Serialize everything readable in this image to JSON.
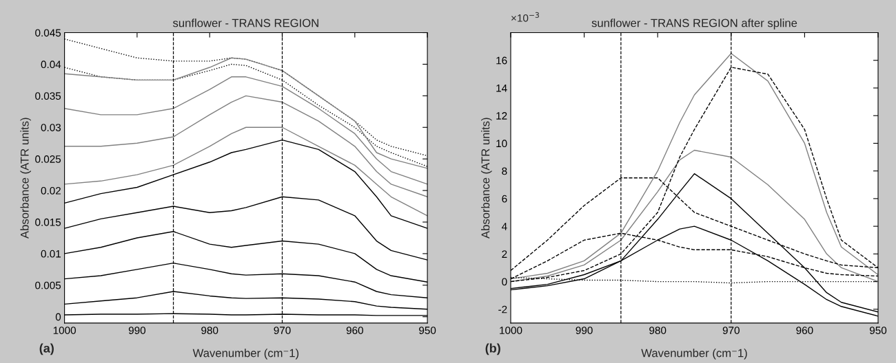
{
  "chart_data": [
    {
      "type": "line",
      "title": "sunflower - TRANS REGION",
      "xlabel": "Wavenumber (cm⁻1)",
      "ylabel": "Absorbance (ATR units)",
      "x": [
        1000,
        995,
        990,
        985,
        980,
        977,
        975,
        970,
        965,
        960,
        957,
        955,
        950
      ],
      "xlim": [
        1000,
        950
      ],
      "xticks": [
        1000,
        990,
        980,
        970,
        960,
        950
      ],
      "ylim": [
        -0.001,
        0.045
      ],
      "yticks": [
        0,
        0.005,
        0.01,
        0.015,
        0.02,
        0.025,
        0.03,
        0.035,
        0.04,
        0.045
      ],
      "grid": false,
      "series": [
        {
          "color": "#000000",
          "line_style": "dotted",
          "values": [
            0.044,
            0.0425,
            0.041,
            0.0405,
            0.0405,
            0.041,
            0.0408,
            0.039,
            0.035,
            0.031,
            0.028,
            0.027,
            0.0255
          ]
        },
        {
          "color": "#000000",
          "line_style": "dotted",
          "values": [
            0.0395,
            0.038,
            0.0375,
            0.0375,
            0.039,
            0.04,
            0.0398,
            0.0375,
            0.0335,
            0.03,
            0.027,
            0.026,
            0.0238
          ]
        },
        {
          "color": "#808080",
          "line_style": "solid",
          "values": [
            0.0385,
            0.038,
            0.0375,
            0.0375,
            0.0395,
            0.041,
            0.0408,
            0.039,
            0.035,
            0.031,
            0.026,
            0.025,
            0.0235
          ]
        },
        {
          "color": "#808080",
          "line_style": "solid",
          "values": [
            0.033,
            0.032,
            0.032,
            0.033,
            0.036,
            0.038,
            0.038,
            0.0365,
            0.033,
            0.029,
            0.025,
            0.023,
            0.021
          ]
        },
        {
          "color": "#808080",
          "line_style": "solid",
          "values": [
            0.027,
            0.027,
            0.0275,
            0.0285,
            0.032,
            0.034,
            0.035,
            0.034,
            0.031,
            0.027,
            0.023,
            0.021,
            0.019
          ]
        },
        {
          "color": "#808080",
          "line_style": "solid",
          "values": [
            0.021,
            0.0215,
            0.0225,
            0.024,
            0.027,
            0.029,
            0.03,
            0.03,
            0.027,
            0.024,
            0.021,
            0.019,
            0.016
          ]
        },
        {
          "color": "#000000",
          "line_style": "solid",
          "values": [
            0.018,
            0.0195,
            0.0205,
            0.0225,
            0.0245,
            0.026,
            0.0265,
            0.028,
            0.0265,
            0.023,
            0.019,
            0.016,
            0.014
          ]
        },
        {
          "color": "#000000",
          "line_style": "solid",
          "values": [
            0.014,
            0.0155,
            0.0165,
            0.0175,
            0.0165,
            0.0168,
            0.0173,
            0.019,
            0.0185,
            0.016,
            0.012,
            0.0105,
            0.009
          ]
        },
        {
          "color": "#000000",
          "line_style": "solid",
          "values": [
            0.01,
            0.011,
            0.0125,
            0.0135,
            0.0115,
            0.011,
            0.0113,
            0.012,
            0.0115,
            0.01,
            0.0075,
            0.0065,
            0.0055
          ]
        },
        {
          "color": "#000000",
          "line_style": "solid",
          "values": [
            0.006,
            0.0065,
            0.0075,
            0.0085,
            0.0075,
            0.0068,
            0.0066,
            0.0068,
            0.0065,
            0.0055,
            0.004,
            0.0035,
            0.003
          ]
        },
        {
          "color": "#000000",
          "line_style": "solid",
          "values": [
            0.002,
            0.0025,
            0.003,
            0.004,
            0.0033,
            0.003,
            0.0029,
            0.003,
            0.0028,
            0.0024,
            0.0017,
            0.0015,
            0.0012
          ]
        },
        {
          "color": "#000000",
          "line_style": "solid",
          "values": [
            0.0003,
            0.0004,
            0.0004,
            0.0005,
            0.0004,
            0.0003,
            0.0003,
            0.0004,
            0.0003,
            0.0003,
            0.0002,
            0.0002,
            0.0002
          ]
        }
      ],
      "ref_lines": [
        {
          "axis": "x",
          "value": 985,
          "color": "#000000",
          "line_style": "dashed"
        },
        {
          "axis": "x",
          "value": 970,
          "color": "#000000",
          "line_style": "dashed"
        }
      ],
      "annotations": [
        "(a)"
      ]
    },
    {
      "type": "line",
      "title": "sunflower - TRANS REGION after spline",
      "xlabel": "Wavenumber (cm⁻1)",
      "ylabel": "Absorbance (ATR units)",
      "x": [
        1000,
        995,
        990,
        985,
        980,
        977,
        975,
        970,
        965,
        960,
        957,
        955,
        950
      ],
      "xlim": [
        1000,
        950
      ],
      "xticks": [
        1000,
        990,
        980,
        970,
        960,
        950
      ],
      "ylim": [
        -3,
        18
      ],
      "yticks": [
        -2,
        0,
        2,
        4,
        6,
        8,
        10,
        12,
        14,
        16
      ],
      "grid": false,
      "series": [
        {
          "color": "#808080",
          "line_style": "solid",
          "values": [
            0.2,
            0.6,
            1.5,
            3.5,
            8,
            11.5,
            13.5,
            16.5,
            14.5,
            10,
            5,
            2.5,
            0.5
          ]
        },
        {
          "color": "#808080",
          "line_style": "solid",
          "values": [
            0,
            0.4,
            1.2,
            3,
            6.5,
            8.8,
            9.5,
            9,
            7,
            4.5,
            2,
            1,
            0
          ]
        },
        {
          "color": "#000000",
          "line_style": "solid",
          "values": [
            -0.5,
            -0.2,
            0.5,
            1.5,
            4.5,
            6.5,
            7.8,
            6,
            3.5,
            1,
            -0.8,
            -1.5,
            -2.2
          ]
        },
        {
          "color": "#000000",
          "line_style": "solid",
          "values": [
            -0.6,
            -0.3,
            0.2,
            1.5,
            3,
            3.8,
            4,
            3,
            1.5,
            -0.2,
            -1.3,
            -1.8,
            -2.5
          ]
        },
        {
          "color": "#000000",
          "line_style": "dashed",
          "values": [
            0.8,
            3,
            5.5,
            7.5,
            7.5,
            6,
            5,
            4,
            3,
            2,
            1.5,
            1.2,
            1
          ]
        },
        {
          "color": "#000000",
          "line_style": "dashed",
          "values": [
            0.2,
            1.5,
            3,
            3.5,
            3,
            2.5,
            2.3,
            2.3,
            1.8,
            1,
            0.6,
            0.5,
            0.4
          ]
        },
        {
          "color": "#000000",
          "line_style": "dashed",
          "values": [
            0,
            0.3,
            0.8,
            2,
            5,
            9,
            11,
            15.5,
            15,
            11,
            6,
            3,
            1
          ]
        },
        {
          "color": "#000000",
          "line_style": "dotted",
          "values": [
            0.3,
            0.2,
            0.1,
            0.1,
            0,
            0,
            0,
            -0.1,
            0,
            0,
            0,
            0,
            0
          ]
        }
      ],
      "ref_lines": [
        {
          "axis": "x",
          "value": 985,
          "color": "#000000",
          "line_style": "dashed"
        },
        {
          "axis": "x",
          "value": 970,
          "color": "#000000",
          "line_style": "dashed"
        }
      ],
      "annotations": [
        "(b)",
        "×10$^{−3}$"
      ]
    }
  ]
}
